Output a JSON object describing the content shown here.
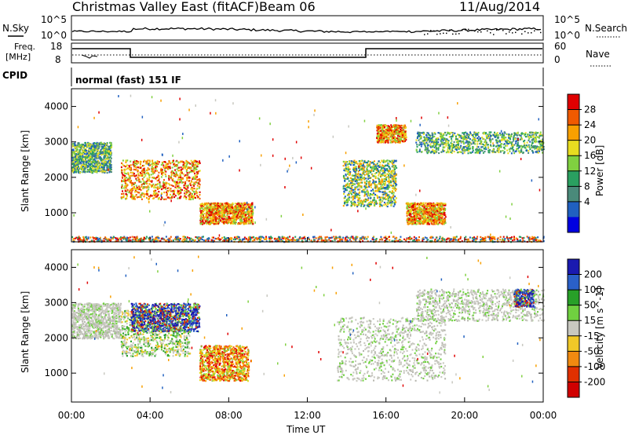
{
  "header": {
    "title": "Christmas Valley East (fitACF)",
    "beam": "Beam 06",
    "date": "11/Aug/2014"
  },
  "top_panels": {
    "nsky_label": "N.Sky",
    "nsky_ticks": [
      "10^5",
      "10^0"
    ],
    "nsearch_label": "N.Search",
    "nsearch_ticks": [
      "10^5",
      "10^0"
    ],
    "freq_label": "Freq.",
    "freq_unit": "[MHz]",
    "freq_ticks": [
      "18",
      "8"
    ],
    "nave_label": "Nave",
    "nave_ticks": [
      "60",
      "0"
    ],
    "cpid_label": "CPID",
    "cpid_text": "normal (fast) 151 IF"
  },
  "chart_data": [
    {
      "type": "heatmap",
      "name": "power",
      "ylabel": "Slant Range [km]",
      "ylim": [
        180,
        4500
      ],
      "yticks": [
        "4000",
        "3000",
        "2000",
        "1000"
      ],
      "xlim": [
        0,
        24
      ],
      "colorbar": {
        "label": "Power [dB]",
        "ticks": [
          "28",
          "24",
          "20",
          "16",
          "12",
          "8",
          "4"
        ],
        "colors": [
          "#e00000",
          "#f05a00",
          "#f8a000",
          "#e8dc20",
          "#80d040",
          "#2aa060",
          "#4a8a7a",
          "#2060c0",
          "#0000e0"
        ]
      },
      "echo_regions": [
        {
          "t0": 0.0,
          "t1": 2.0,
          "r0": 2150,
          "r1": 3000,
          "level": "green-blue"
        },
        {
          "t0": 2.5,
          "t1": 6.5,
          "r0": 1400,
          "r1": 2500,
          "level": "orange-red"
        },
        {
          "t0": 6.5,
          "t1": 9.2,
          "r0": 700,
          "r1": 1300,
          "level": "orange"
        },
        {
          "t0": 13.8,
          "t1": 16.5,
          "r0": 1200,
          "r1": 2500,
          "level": "green-orange"
        },
        {
          "t0": 15.5,
          "t1": 17.0,
          "r0": 3000,
          "r1": 3500,
          "level": "orange"
        },
        {
          "t0": 17.0,
          "t1": 19.0,
          "r0": 700,
          "r1": 1300,
          "level": "orange-red"
        },
        {
          "t0": 17.5,
          "t1": 24.0,
          "r0": 2700,
          "r1": 3300,
          "level": "green-blue"
        },
        {
          "t0": 0.0,
          "t1": 24.0,
          "r0": 200,
          "r1": 350,
          "level": "ground-scatter"
        }
      ]
    },
    {
      "type": "heatmap",
      "name": "velocity",
      "ylabel": "Slant Range [km]",
      "ylim": [
        180,
        4500
      ],
      "yticks": [
        "4000",
        "3000",
        "2000",
        "1000"
      ],
      "xlim": [
        0,
        24
      ],
      "xlabel": "Time UT",
      "xticks": [
        "00:00",
        "04:00",
        "08:00",
        "12:00",
        "16:00",
        "20:00",
        "00:00"
      ],
      "colorbar": {
        "label": "Velocity [m s^-1]",
        "ticks": [
          "200",
          "100",
          "50",
          "15",
          "-15",
          "-50",
          "-100",
          "-200"
        ],
        "colors": [
          "#1a1ab0",
          "#2a60c8",
          "#28a028",
          "#70d040",
          "#c8c8c0",
          "#f0c828",
          "#f08a10",
          "#e03000",
          "#d00000"
        ]
      },
      "echo_regions": [
        {
          "t0": 0.0,
          "t1": 2.5,
          "r0": 2000,
          "r1": 3000,
          "level": "grey"
        },
        {
          "t0": 2.5,
          "t1": 6.0,
          "r0": 1500,
          "r1": 2800,
          "level": "grey-green"
        },
        {
          "t0": 3.0,
          "t1": 6.5,
          "r0": 2200,
          "r1": 3000,
          "level": "blue"
        },
        {
          "t0": 6.5,
          "t1": 9.0,
          "r0": 800,
          "r1": 1800,
          "level": "orange"
        },
        {
          "t0": 13.5,
          "t1": 19.0,
          "r0": 800,
          "r1": 2600,
          "level": "grey"
        },
        {
          "t0": 17.5,
          "t1": 24.0,
          "r0": 2500,
          "r1": 3400,
          "level": "grey"
        },
        {
          "t0": 22.5,
          "t1": 23.5,
          "r0": 2900,
          "r1": 3400,
          "level": "blue"
        }
      ]
    }
  ]
}
